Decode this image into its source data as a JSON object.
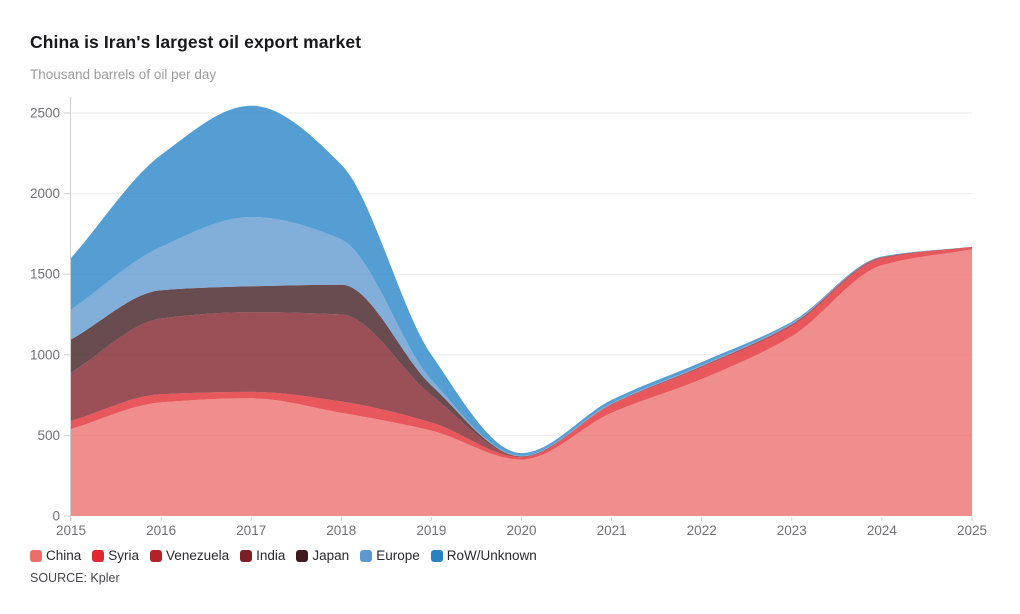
{
  "title": "China is Iran's largest oil export market",
  "subtitle": "Thousand barrels of oil per day",
  "source": "SOURCE: Kpler",
  "chart_data": {
    "type": "area",
    "stacked": true,
    "title": "China is Iran's largest oil export market",
    "ylabel": "Thousand barrels of oil per day",
    "xlabel": "",
    "grid": "horizontal",
    "legend_position": "bottom",
    "ylim": [
      0,
      2500
    ],
    "yticks": [
      0,
      500,
      1000,
      1500,
      2000,
      2500
    ],
    "y_tick_labels": [
      "0",
      "500",
      "1000",
      "1500",
      "2000",
      "2500"
    ],
    "x": [
      2015,
      2016,
      2017,
      2018,
      2019,
      2020,
      2021,
      2022,
      2023,
      2024,
      2025
    ],
    "x_tick_labels": [
      "2015",
      "2016",
      "2017",
      "2018",
      "2019",
      "2020",
      "2021",
      "2022",
      "2023",
      "2024",
      "2025"
    ],
    "series": [
      {
        "name": "China",
        "color": "#eb6e6b",
        "values": [
          540,
          705,
          730,
          640,
          530,
          350,
          640,
          850,
          1115,
          1555,
          1655
        ]
      },
      {
        "name": "Syria",
        "color": "#e0282e",
        "values": [
          50,
          50,
          40,
          70,
          50,
          15,
          50,
          70,
          60,
          40,
          12
        ]
      },
      {
        "name": "Venezuela",
        "color": "#b2222b",
        "values": [
          0,
          0,
          0,
          0,
          0,
          0,
          5,
          10,
          15,
          10,
          3
        ]
      },
      {
        "name": "India",
        "color": "#7d1f26",
        "values": [
          300,
          470,
          495,
          540,
          170,
          5,
          0,
          0,
          0,
          0,
          0
        ]
      },
      {
        "name": "Japan",
        "color": "#3f1a1f",
        "values": [
          205,
          175,
          160,
          185,
          60,
          0,
          0,
          0,
          0,
          0,
          0
        ]
      },
      {
        "name": "Europe",
        "color": "#5f97cf",
        "values": [
          185,
          270,
          430,
          280,
          35,
          5,
          5,
          5,
          5,
          0,
          0
        ]
      },
      {
        "name": "RoW/Unknown",
        "color": "#2583c6",
        "values": [
          320,
          570,
          690,
          465,
          155,
          15,
          20,
          20,
          10,
          5,
          0
        ]
      }
    ],
    "totals_by_year": [
      1600,
      2240,
      2545,
      2180,
      1000,
      390,
      720,
      955,
      1205,
      1610,
      1670
    ]
  }
}
